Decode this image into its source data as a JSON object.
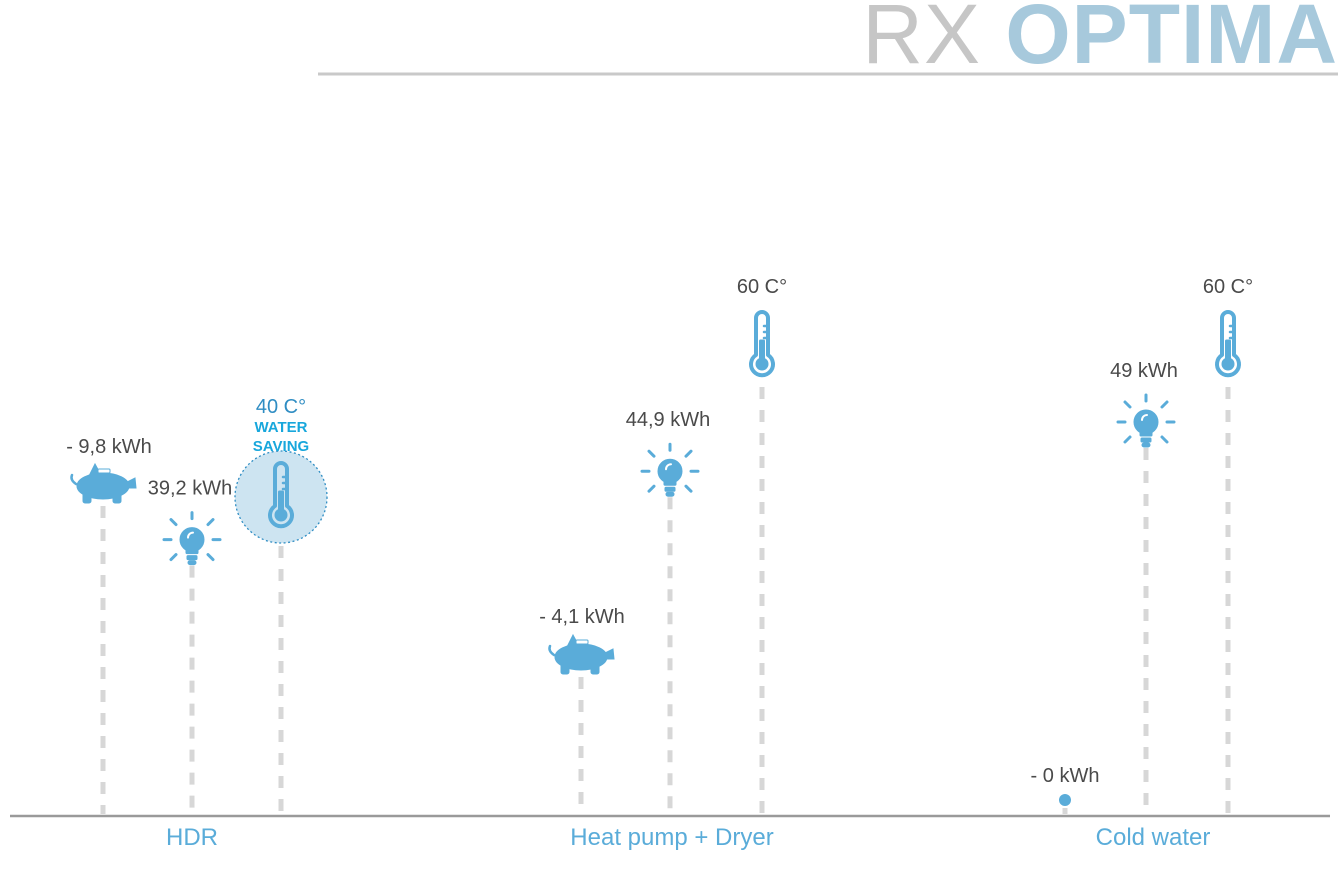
{
  "brand": {
    "prefix": "RX",
    "name": "OPTIMA"
  },
  "colors": {
    "accent": "#5aacd9",
    "accent_dark": "#2f8dc3",
    "text": "#4a4a4a",
    "dash": "#d7d7d7",
    "baseline": "#9a9a9a",
    "highlight_fill": "#cde4f1"
  },
  "chart_data": {
    "type": "scatter",
    "title": "",
    "xlabel": "",
    "ylabel": "",
    "groups": [
      {
        "name": "HDR",
        "items": [
          {
            "label": "- 9,8 kWh",
            "icon": "piggy-bank-icon",
            "value": -9.8,
            "kind": "savings"
          },
          {
            "label": "39,2 kWh",
            "icon": "lightbulb-icon",
            "value": 39.2,
            "kind": "energy"
          },
          {
            "label": "40 C°",
            "icon": "thermometer-icon",
            "value": 40,
            "kind": "temperature",
            "tag": "WATER SAVING",
            "highlight": true
          }
        ]
      },
      {
        "name": "Heat pump + Dryer",
        "items": [
          {
            "label": "- 4,1 kWh",
            "icon": "piggy-bank-icon",
            "value": -4.1,
            "kind": "savings"
          },
          {
            "label": "44,9 kWh",
            "icon": "lightbulb-icon",
            "value": 44.9,
            "kind": "energy"
          },
          {
            "label": "60 C°",
            "icon": "thermometer-icon",
            "value": 60,
            "kind": "temperature"
          }
        ]
      },
      {
        "name": "Cold water",
        "items": [
          {
            "label": "- 0 kWh",
            "icon": "dot-icon",
            "value": 0,
            "kind": "savings"
          },
          {
            "label": "49 kWh",
            "icon": "lightbulb-icon",
            "value": 49,
            "kind": "energy"
          },
          {
            "label": "60 C°",
            "icon": "thermometer-icon",
            "value": 60,
            "kind": "temperature"
          }
        ]
      }
    ]
  }
}
